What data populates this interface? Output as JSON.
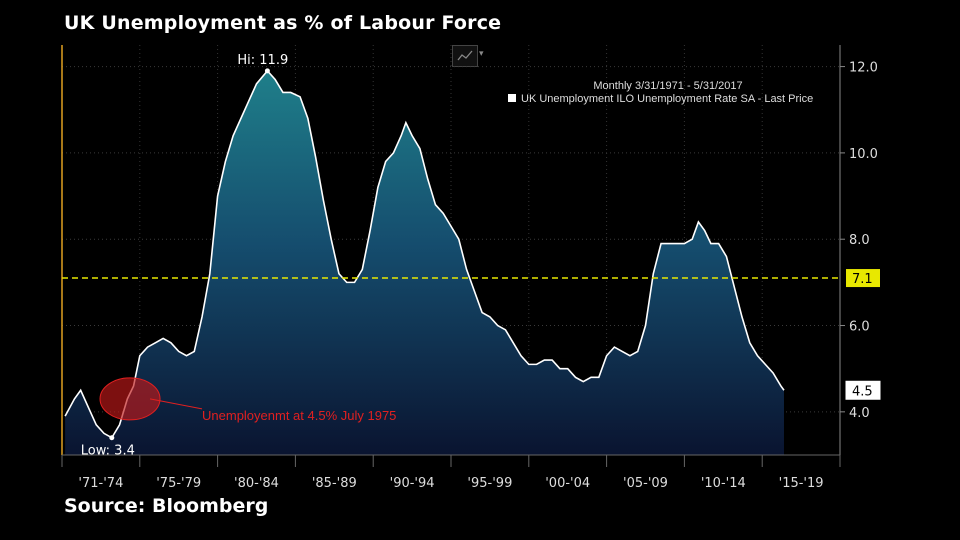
{
  "header": {
    "title": "UK Unemployment as % of Labour Force"
  },
  "footer": {
    "source": "Source: Bloomberg"
  },
  "toolbar": {
    "chart_type_icon": "line-chart-icon"
  },
  "chart_data": {
    "type": "area",
    "title": "UK Unemployment as % of Labour Force",
    "legend": {
      "period": "Monthly 3/31/1971 - 5/31/2017",
      "series_label": "UK Unemployment ILO Unemployment Rate SA - Last Price",
      "placement": "top-right"
    },
    "x_categories": [
      "'71-'74",
      "'75-'79",
      "'80-'84",
      "'85-'89",
      "'90-'94",
      "'95-'99",
      "'00-'04",
      "'05-'09",
      "'10-'14",
      "'15-'19"
    ],
    "x_range": [
      1971,
      2021
    ],
    "ylim": [
      3.0,
      12.5
    ],
    "y_ticks": [
      4.0,
      6.0,
      8.0,
      10.0,
      12.0
    ],
    "y_tick_labels": [
      "4.0",
      "6.0",
      "8.0",
      "10.0",
      "12.0"
    ],
    "grid": true,
    "reference_line": {
      "value": 7.1,
      "label": "7.1",
      "color": "#e8e800"
    },
    "last_value_label": "4.5",
    "high": {
      "label": "Hi: 11.9",
      "x": 1984.2,
      "y": 11.9
    },
    "low": {
      "label": "Low: 3.4",
      "x": 1974.2,
      "y": 3.4
    },
    "annotation": {
      "text": "Unemployenmt at 4.5% July 1975",
      "x": 1975.5,
      "y": 4.3
    },
    "series": [
      {
        "name": "UK Unemployment ILO Unemployment Rate SA - Last Price",
        "x": [
          1971.2,
          1971.8,
          1972.2,
          1972.7,
          1973.2,
          1973.7,
          1974.2,
          1974.7,
          1975.2,
          1975.6,
          1976.0,
          1976.5,
          1977.0,
          1977.5,
          1978.0,
          1978.5,
          1979.0,
          1979.5,
          1980.0,
          1980.5,
          1981.0,
          1981.5,
          1982.0,
          1982.5,
          1983.0,
          1983.5,
          1984.2,
          1984.7,
          1985.2,
          1985.7,
          1986.3,
          1986.8,
          1987.3,
          1987.8,
          1988.3,
          1988.8,
          1989.3,
          1989.8,
          1990.3,
          1990.8,
          1991.3,
          1991.8,
          1992.3,
          1992.8,
          1993.1,
          1993.5,
          1994.0,
          1994.5,
          1995.0,
          1995.5,
          1996.0,
          1996.5,
          1997.0,
          1997.5,
          1998.0,
          1998.5,
          1999.0,
          1999.5,
          2000.0,
          2000.5,
          2001.0,
          2001.5,
          2002.0,
          2002.5,
          2003.0,
          2003.5,
          2004.0,
          2004.5,
          2005.0,
          2005.5,
          2006.0,
          2006.5,
          2007.0,
          2007.5,
          2008.0,
          2008.5,
          2009.0,
          2009.5,
          2010.0,
          2010.5,
          2011.0,
          2011.5,
          2011.9,
          2012.3,
          2012.7,
          2013.2,
          2013.7,
          2014.2,
          2014.7,
          2015.2,
          2015.7,
          2016.2,
          2016.7,
          2017.2,
          2017.4
        ],
        "values": [
          3.9,
          4.3,
          4.5,
          4.1,
          3.7,
          3.5,
          3.4,
          3.7,
          4.3,
          4.6,
          5.3,
          5.5,
          5.6,
          5.7,
          5.6,
          5.4,
          5.3,
          5.4,
          6.2,
          7.2,
          9.0,
          9.8,
          10.4,
          10.8,
          11.2,
          11.6,
          11.9,
          11.7,
          11.4,
          11.4,
          11.3,
          10.8,
          9.9,
          8.9,
          8.0,
          7.2,
          7.0,
          7.0,
          7.3,
          8.2,
          9.2,
          9.8,
          10.0,
          10.4,
          10.7,
          10.4,
          10.1,
          9.4,
          8.8,
          8.6,
          8.3,
          8.0,
          7.3,
          6.8,
          6.3,
          6.2,
          6.0,
          5.9,
          5.6,
          5.3,
          5.1,
          5.1,
          5.2,
          5.2,
          5.0,
          5.0,
          4.8,
          4.7,
          4.8,
          4.8,
          5.3,
          5.5,
          5.4,
          5.3,
          5.4,
          6.0,
          7.2,
          7.9,
          7.9,
          7.9,
          7.9,
          8.0,
          8.4,
          8.2,
          7.9,
          7.9,
          7.6,
          6.9,
          6.2,
          5.6,
          5.3,
          5.1,
          4.9,
          4.6,
          4.5
        ]
      }
    ]
  }
}
